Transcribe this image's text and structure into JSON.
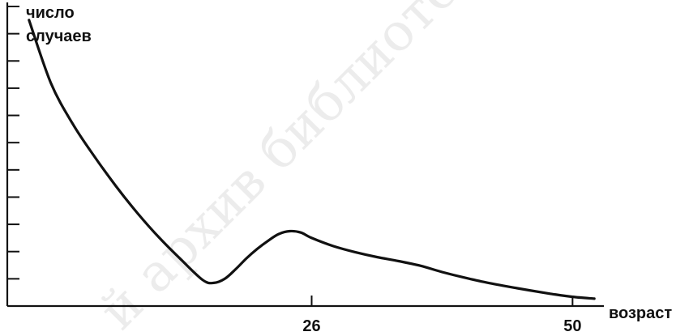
{
  "chart_data": {
    "type": "line",
    "title": "",
    "ylabel": "число случаев",
    "ylabel_lines": [
      "число",
      "случаев"
    ],
    "xlabel": "возраст",
    "x_ticks": [
      26,
      50
    ],
    "x": [
      0,
      2,
      4,
      6,
      8,
      10,
      12,
      14,
      16,
      17,
      18,
      19,
      20,
      21,
      22,
      23,
      24,
      25,
      26,
      28,
      30,
      32,
      34,
      36,
      38,
      40,
      42,
      44,
      46,
      48,
      50,
      52
    ],
    "values": [
      10.5,
      8.2,
      6.7,
      5.5,
      4.4,
      3.4,
      2.5,
      1.7,
      0.95,
      0.85,
      1.0,
      1.35,
      1.75,
      2.1,
      2.4,
      2.65,
      2.75,
      2.7,
      2.5,
      2.2,
      1.98,
      1.8,
      1.65,
      1.48,
      1.25,
      1.05,
      0.87,
      0.72,
      0.58,
      0.45,
      0.34,
      0.27
    ],
    "xlim": [
      -2,
      54
    ],
    "ylim": [
      0,
      11
    ],
    "y_ticks": [
      1,
      2,
      3,
      4,
      5,
      6,
      7,
      8,
      9,
      10,
      11
    ],
    "grid": false,
    "legend": "none",
    "line_color": "#111111",
    "watermark": "й архив библиотеки М"
  }
}
